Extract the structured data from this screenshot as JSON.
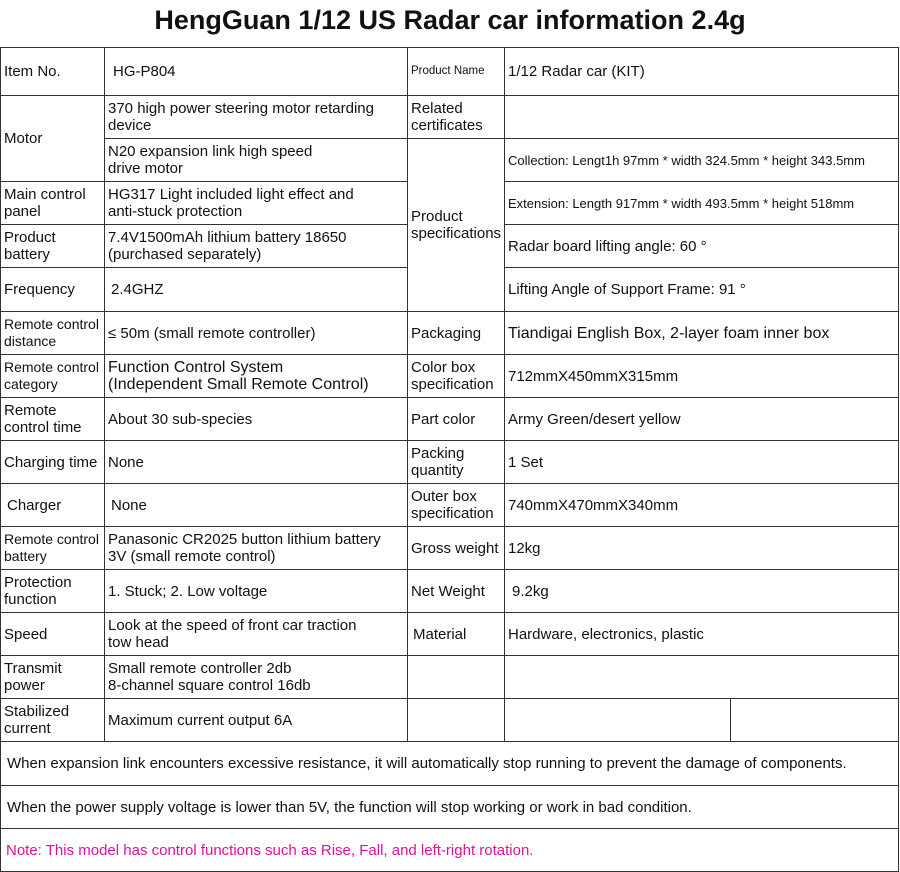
{
  "title": "HengGuan 1/12 US Radar car information 2.4g",
  "left": [
    {
      "label": "Item No.",
      "value": "HG-P804"
    },
    {
      "label": "Motor",
      "values": [
        "370 high power steering motor retarding\ndevice",
        "N20 expansion link high speed\ndrive motor"
      ]
    },
    {
      "label": "Main control\npanel",
      "value": "HG317 Light included light effect and\nanti-stuck protection"
    },
    {
      "label": "Product\nbattery",
      "value": "7.4V1500mAh lithium battery 18650\n(purchased separately)"
    },
    {
      "label": "Frequency",
      "value": "2.4GHZ"
    },
    {
      "label": "Remote control\ndistance",
      "value": "≤ 50m (small remote controller)"
    },
    {
      "label": "Remote control\ncategory",
      "value": "Function Control System\n(Independent Small Remote Control)"
    },
    {
      "label": "Remote\ncontrol time",
      "value": "About 30 sub-species"
    },
    {
      "label": "Charging time",
      "value": "None"
    },
    {
      "label": "Charger",
      "value": "None"
    },
    {
      "label": "Remote control\nbattery",
      "value": "Panasonic CR2025 button lithium battery\n3V (small remote control)"
    },
    {
      "label": "Protection\nfunction",
      "value": "1. Stuck; 2. Low voltage"
    },
    {
      "label": "Speed",
      "value": "Look at the speed of front car traction\ntow head"
    },
    {
      "label": "Transmit\npower",
      "value": "Small remote controller 2db\n8-channel square control 16db"
    },
    {
      "label": "Stabilized\ncurrent",
      "value": "Maximum current output 6A"
    }
  ],
  "right": [
    {
      "label": "Product Name",
      "value": "1/12 Radar car (KIT)"
    },
    {
      "label": "Related\ncertificates",
      "value": ""
    },
    {
      "label": "Product\nspecifications",
      "values": [
        "Collection: Lengt1h 97mm * width 324.5mm * height 343.5mm",
        "Extension: Length 917mm * width 493.5mm * height 518mm",
        "Radar board lifting angle: 60 °",
        "Lifting Angle of Support Frame: 91 °"
      ]
    },
    {
      "label": "Packaging",
      "value": "Tiandigai English Box, 2-layer foam inner box"
    },
    {
      "label": "Color box\nspecification",
      "value": "712mmX450mmX315mm"
    },
    {
      "label": "Part color",
      "value": "Army Green/desert yellow"
    },
    {
      "label": "Packing\nquantity",
      "value": "1 Set"
    },
    {
      "label": "Outer box\nspecification",
      "value": "740mmX470mmX340mm"
    },
    {
      "label": "Gross weight",
      "value": "12kg"
    },
    {
      "label": "Net Weight",
      "value": "9.2kg"
    },
    {
      "label": "Material",
      "value": "Hardware, electronics, plastic"
    }
  ],
  "notes": [
    "When expansion link encounters excessive resistance, it will automatically stop running to prevent the damage of components.",
    "When the power supply voltage is lower than 5V, the function will stop working or work in bad condition.",
    "Note: This model has control functions such as Rise, Fall, and left-right rotation."
  ],
  "colors": {
    "note": "#e0109f",
    "border": "#333333"
  }
}
